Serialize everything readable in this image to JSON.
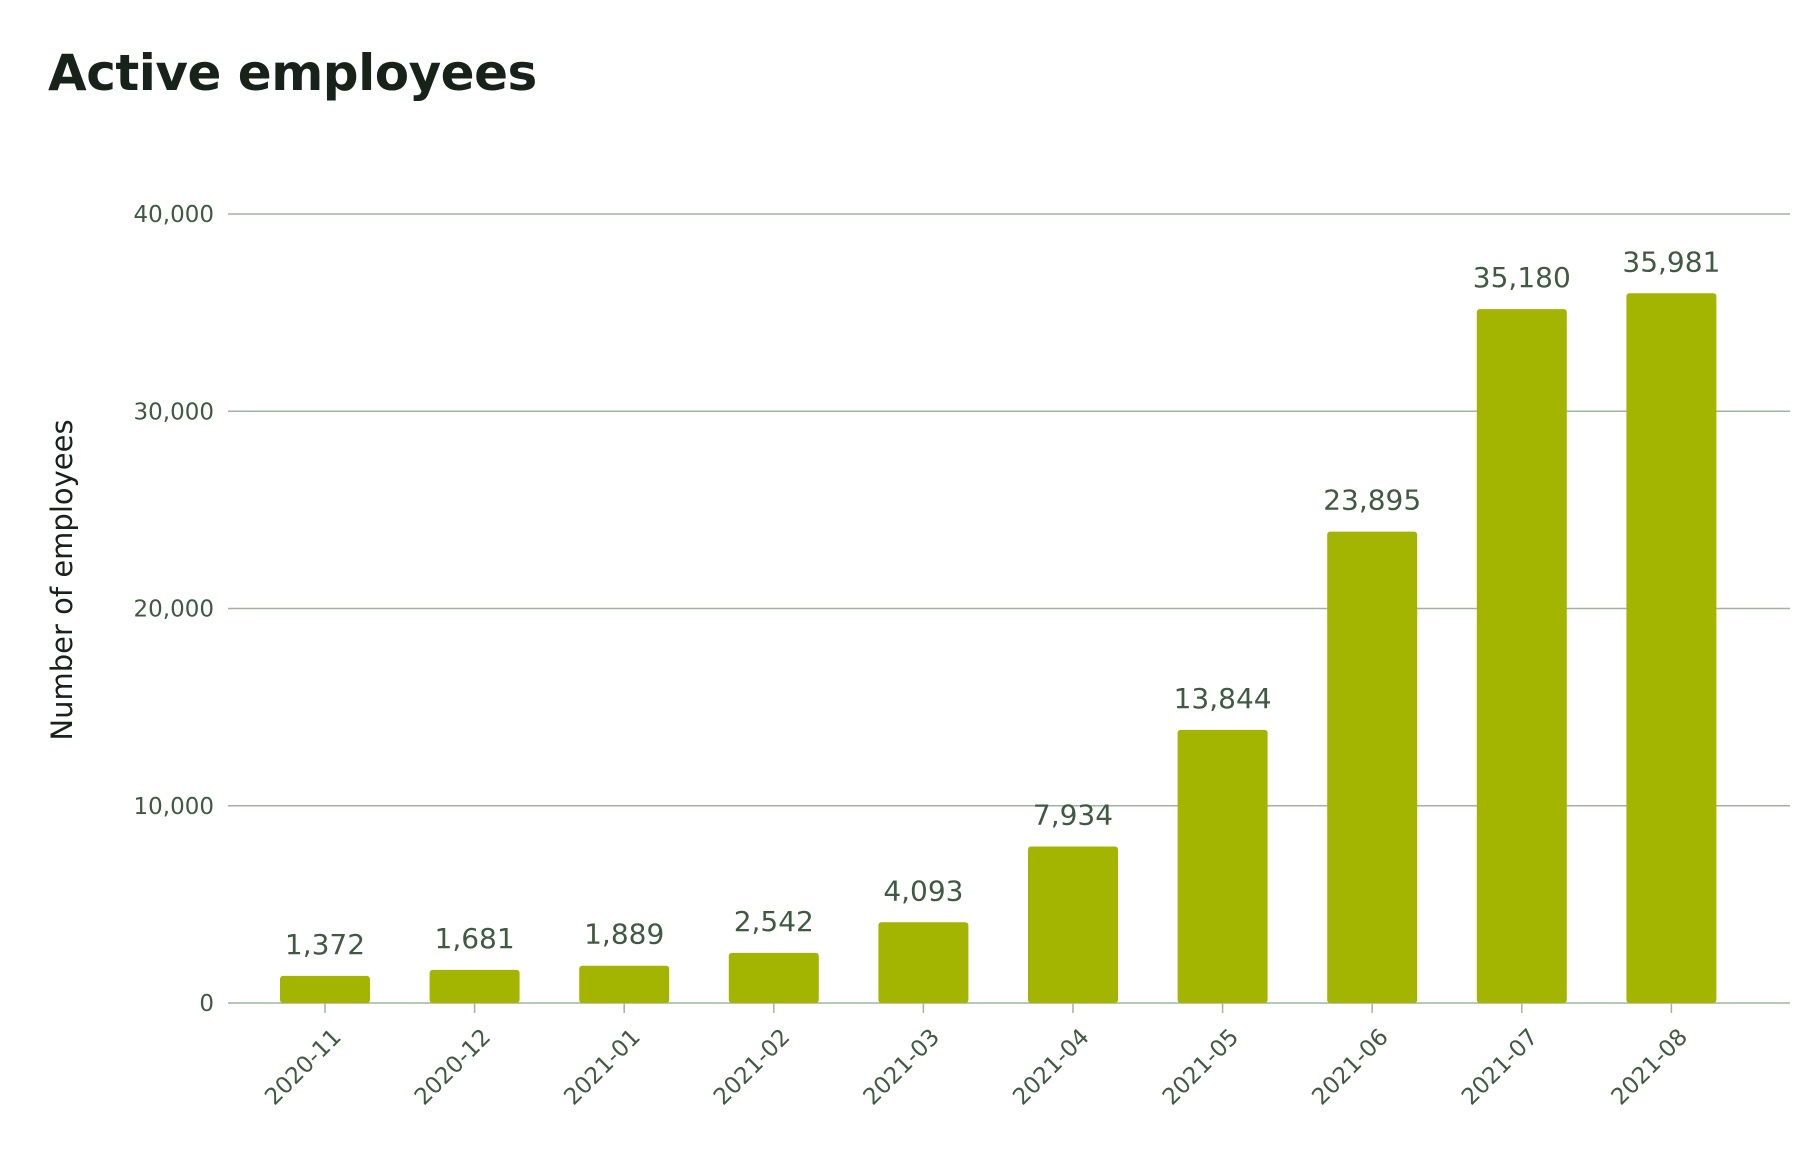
{
  "chart_data": {
    "type": "bar",
    "title": "Active employees",
    "ylabel": "Number of employees",
    "xlabel": "",
    "categories": [
      "2020-11",
      "2020-12",
      "2021-01",
      "2021-02",
      "2021-03",
      "2021-04",
      "2021-05",
      "2021-06",
      "2021-07",
      "2021-08"
    ],
    "values": [
      1372,
      1681,
      1889,
      2542,
      4093,
      7934,
      13844,
      23895,
      35180,
      35981
    ],
    "value_labels": [
      "1,372",
      "1,681",
      "1,889",
      "2,542",
      "4,093",
      "7,934",
      "13,844",
      "23,895",
      "35,180",
      "35,981"
    ],
    "ylim": [
      0,
      40000
    ],
    "yticks": [
      0,
      10000,
      20000,
      30000,
      40000
    ],
    "ytick_labels": [
      "0",
      "10,000",
      "20,000",
      "30,000",
      "40,000"
    ],
    "grid": true,
    "legend": "none",
    "colors": {
      "bar": "#a3b501",
      "grid": "#9fb59f",
      "text": "#3f5a40",
      "title": "#16221a"
    }
  }
}
